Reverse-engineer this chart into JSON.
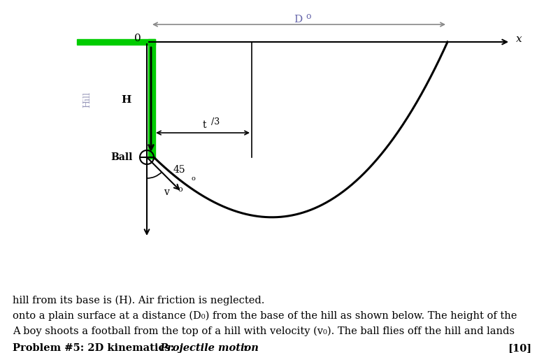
{
  "bg_color": "#ffffff",
  "title_bold": "Problem #5: 2D kinematics: ",
  "title_italic": "Projectile motion",
  "title_colon": ":",
  "score": "[10]",
  "para_line1": "A boy shoots a football from the top of a hill with velocity (v₀). The ball flies off the hill and lands",
  "para_line2": "onto a plain surface at a distance (D₀) from the base of the hill as shown below. The height of the",
  "para_line3": "hill from its base is (H). Air friction is neglected.",
  "hill_color": "#00cc00",
  "x_label": "x",
  "origin_label": "0",
  "H_label": "H",
  "Ball_label": "Ball",
  "Hill_label": "Hill",
  "v0_main": "v",
  "v0_sub": "o",
  "angle_label": "45",
  "D0_main": "D",
  "D0_sub": "o",
  "t3_main": "t",
  "t3_sub": "/3"
}
